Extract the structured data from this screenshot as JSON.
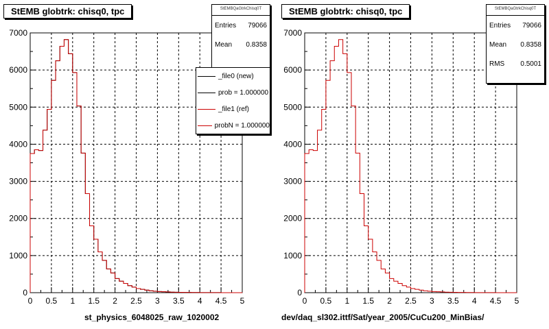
{
  "colors": {
    "new_histogram": "#000000",
    "ref_histogram": "#cc0000",
    "grid": "#000000"
  },
  "footer_text": "",
  "chart_data": [
    {
      "type": "histogram",
      "title": "StEMB globtrk: chisq0, tpc",
      "xlabel": "st_physics_6048025_raw_1020002",
      "xlim": [
        0,
        5
      ],
      "ylim": [
        0,
        7000
      ],
      "xticks": [
        "0",
        "0.5",
        "1",
        "1.5",
        "2",
        "2.5",
        "3",
        "3.5",
        "4",
        "4.5",
        "5"
      ],
      "yticks": [
        "0",
        "1000",
        "2000",
        "3000",
        "4000",
        "5000",
        "6000",
        "7000"
      ],
      "grid": true,
      "bin_width": 0.1,
      "bin_start": 0,
      "series": [
        {
          "name": "_file0 (new)",
          "color": "#000000",
          "values": [
            3750,
            3850,
            3830,
            4380,
            4940,
            5720,
            6250,
            6640,
            6820,
            6440,
            5930,
            5030,
            3760,
            2670,
            1800,
            1440,
            1100,
            870,
            640,
            530,
            380,
            310,
            250,
            190,
            150,
            110,
            90,
            70,
            50,
            40,
            30,
            25,
            20,
            15,
            12,
            10,
            8,
            6,
            5,
            4,
            3,
            3,
            2,
            2,
            2,
            1,
            1,
            1,
            1,
            1
          ]
        },
        {
          "name": "_file1 (ref)",
          "color": "#cc0000",
          "values": [
            3750,
            3850,
            3830,
            4380,
            4940,
            5720,
            6250,
            6640,
            6820,
            6440,
            5930,
            5030,
            3760,
            2670,
            1800,
            1440,
            1100,
            870,
            640,
            530,
            380,
            310,
            250,
            190,
            150,
            110,
            90,
            70,
            50,
            40,
            30,
            25,
            20,
            15,
            12,
            10,
            8,
            6,
            5,
            4,
            3,
            3,
            2,
            2,
            2,
            1,
            1,
            1,
            1,
            1
          ]
        }
      ],
      "stats": {
        "name": "StEMBQaGtrkChisq0T",
        "entries_label": "Entries",
        "entries": "79066",
        "mean_label": "Mean",
        "mean": "0.8358"
      },
      "legend": [
        {
          "label": "_file0 (new)",
          "color": "#000000"
        },
        {
          "label": "prob = 1.000000",
          "color": "#000000"
        },
        {
          "label": "_file1 (ref)",
          "color": "#cc0000"
        },
        {
          "label": "probN = 1.000000",
          "color": "#cc0000"
        }
      ]
    },
    {
      "type": "histogram",
      "title": "StEMB globtrk: chisq0, tpc",
      "xlabel": "dev/daq_sl302.ittf/Sat/year_2005/CuCu200_MinBias/",
      "xlim": [
        0,
        5
      ],
      "ylim": [
        0,
        7000
      ],
      "xticks": [
        "0",
        "0.5",
        "1",
        "1.5",
        "2",
        "2.5",
        "3",
        "3.5",
        "4",
        "4.5",
        "5"
      ],
      "yticks": [
        "0",
        "1000",
        "2000",
        "3000",
        "4000",
        "5000",
        "6000",
        "7000"
      ],
      "grid": true,
      "bin_width": 0.1,
      "bin_start": 0,
      "series": [
        {
          "color": "#cc0000",
          "values": [
            3750,
            3850,
            3830,
            4380,
            4940,
            5720,
            6250,
            6640,
            6820,
            6440,
            5930,
            5030,
            3760,
            2670,
            1800,
            1440,
            1100,
            870,
            640,
            530,
            380,
            310,
            250,
            190,
            150,
            110,
            90,
            70,
            50,
            40,
            30,
            25,
            20,
            15,
            12,
            10,
            8,
            6,
            5,
            4,
            3,
            3,
            2,
            2,
            2,
            1,
            1,
            1,
            1,
            1
          ]
        }
      ],
      "stats": {
        "name": "StEMBQaGtrkChisq0T",
        "entries_label": "Entries",
        "entries": "79066",
        "mean_label": "Mean",
        "mean": "0.8358",
        "rms_label": "RMS",
        "rms": "0.5001"
      }
    }
  ]
}
